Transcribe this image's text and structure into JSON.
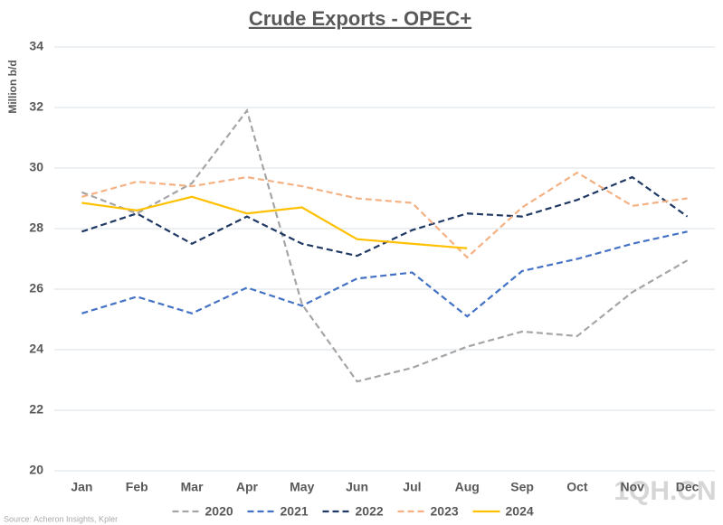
{
  "chart_data": {
    "type": "line",
    "title": "Crude Exports - OPEC+",
    "y_label": "Million b/d",
    "source": "Source: Acheron Insights, Kpler",
    "watermark": "1QH.CN",
    "categories": [
      "Jan",
      "Feb",
      "Mar",
      "Apr",
      "May",
      "Jun",
      "Jul",
      "Aug",
      "Sep",
      "Oct",
      "Nov",
      "Dec"
    ],
    "series": [
      {
        "name": "2020",
        "color": "#a5a5a5",
        "dashed": true,
        "values": [
          29.2,
          28.5,
          29.5,
          31.9,
          25.5,
          22.95,
          23.4,
          24.1,
          24.6,
          24.45,
          25.9,
          26.95
        ]
      },
      {
        "name": "2021",
        "color": "#4472c4",
        "dashed": true,
        "values": [
          25.2,
          25.75,
          25.2,
          26.05,
          25.45,
          26.35,
          26.55,
          25.1,
          26.6,
          27.0,
          27.5,
          27.9
        ]
      },
      {
        "name": "2022",
        "color": "#1f3864",
        "dashed": true,
        "values": [
          27.9,
          28.5,
          27.5,
          28.4,
          27.5,
          27.1,
          27.95,
          28.5,
          28.4,
          28.95,
          29.7,
          28.4
        ]
      },
      {
        "name": "2023",
        "color": "#f4b183",
        "dashed": true,
        "values": [
          29.05,
          29.55,
          29.4,
          29.7,
          29.4,
          29.0,
          28.85,
          27.05,
          28.7,
          29.85,
          28.75,
          29.0
        ]
      },
      {
        "name": "2024",
        "color": "#ffc000",
        "dashed": false,
        "values": [
          28.85,
          28.6,
          29.05,
          28.5,
          28.7,
          27.65,
          27.5,
          27.35,
          null,
          null,
          null,
          null
        ]
      }
    ],
    "ylim": [
      20,
      34
    ],
    "yticks": [
      20,
      22,
      24,
      26,
      28,
      30,
      32,
      34
    ],
    "grid": true,
    "legend": "bottom"
  }
}
